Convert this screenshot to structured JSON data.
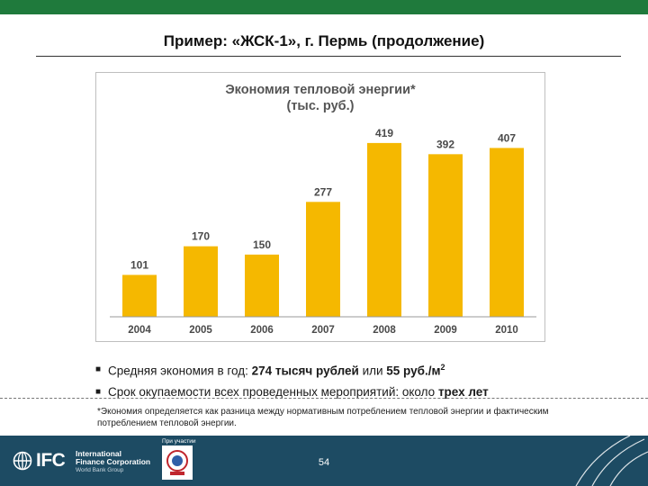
{
  "slide": {
    "title": "Пример: «ЖСК-1», г. Пермь (продолжение)"
  },
  "chart_data": {
    "type": "bar",
    "title": "Экономия тепловой энергии*",
    "subtitle": "(тыс. руб.)",
    "categories": [
      "2004",
      "2005",
      "2006",
      "2007",
      "2008",
      "2009",
      "2010"
    ],
    "values": [
      101,
      170,
      150,
      277,
      419,
      392,
      407
    ],
    "data_labels": [
      "101",
      "170",
      "150",
      "277",
      "419",
      "392",
      "407"
    ],
    "ylim": [
      0,
      460
    ],
    "grid": false,
    "legend": "none",
    "bar_color": "#f5b800"
  },
  "bullets": {
    "line1_prefix": "Средняя экономия в год: ",
    "line1_bold": "274 тысяч рублей",
    "line1_middle": " или ",
    "line1_bold2": "55 руб./м",
    "line1_sup": "2",
    "line2_prefix": "Срок окупаемости всех проведенных мероприятий: около ",
    "line2_bold": "трех лет"
  },
  "footnote": {
    "text": "*Экономия определяется как разница между нормативным потреблением тепловой энергии и фактическим потреблением тепловой энергии."
  },
  "footer": {
    "ifc_mark": "IFC",
    "ifc_org_line1": "International",
    "ifc_org_line2": "Finance Corporation",
    "ifc_org_line3": "World Bank Group",
    "partner_label": "При участии",
    "page_number": "54"
  },
  "colors": {
    "top_bar": "#1f7a3c",
    "footer_bg": "#1d4b63",
    "bar": "#f5b800"
  }
}
